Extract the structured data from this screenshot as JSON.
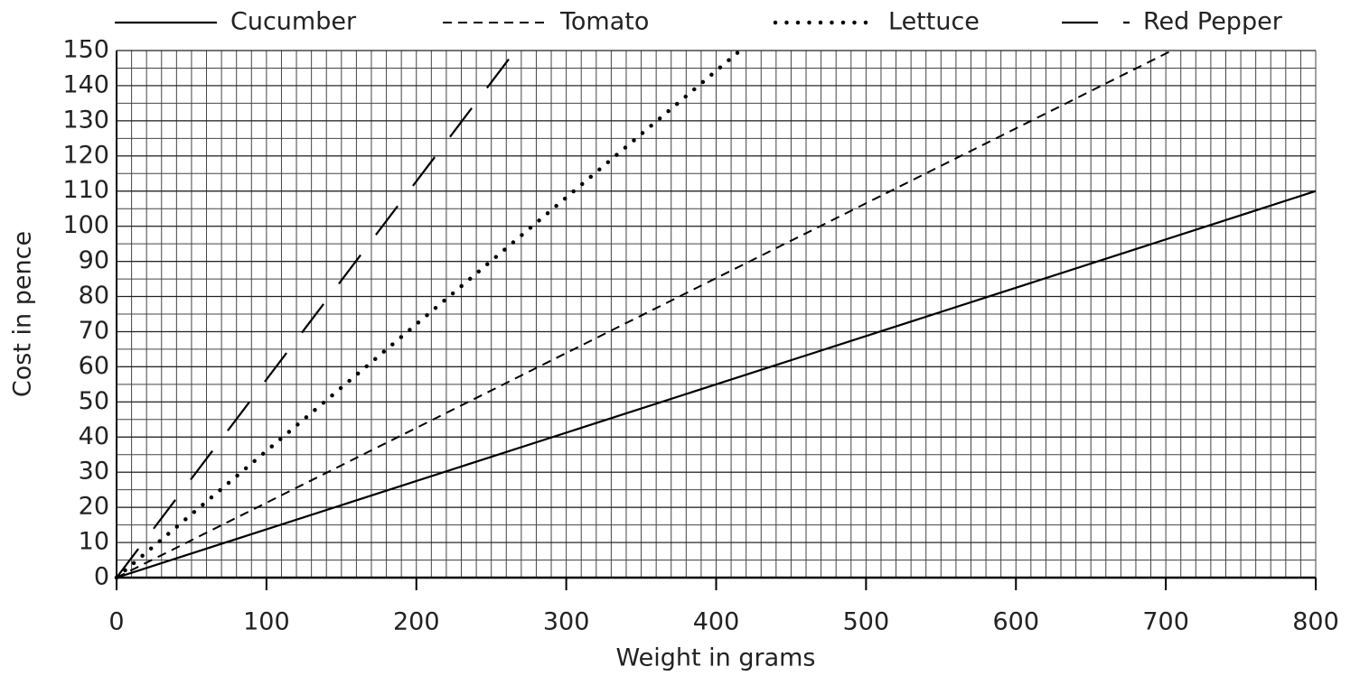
{
  "chart_data": {
    "type": "line",
    "xlabel": "Weight in grams",
    "ylabel": "Cost in pence",
    "xlim": [
      0,
      800
    ],
    "xticks": [
      0,
      100,
      200,
      300,
      400,
      500,
      600,
      700,
      800
    ],
    "ylim": [
      0,
      150
    ],
    "yticks": [
      0,
      10,
      20,
      30,
      40,
      50,
      60,
      70,
      80,
      90,
      100,
      110,
      120,
      130,
      140,
      150
    ],
    "grid": true,
    "minor_grid": {
      "x": 10,
      "y": 5
    },
    "legend": "top",
    "series": [
      {
        "name": "Cucumber",
        "color": "#000000",
        "dash": "solid",
        "x": [
          0,
          800
        ],
        "values": [
          0,
          110
        ]
      },
      {
        "name": "Tomato",
        "color": "#000000",
        "dash": "dashed",
        "x": [
          0,
          704
        ],
        "values": [
          0,
          150
        ]
      },
      {
        "name": "Lettuce",
        "color": "#000000",
        "dash": "dotted",
        "x": [
          0,
          416
        ],
        "values": [
          0,
          150
        ]
      },
      {
        "name": "Red Pepper",
        "color": "#000000",
        "dash": "longdash",
        "x": [
          0,
          266
        ],
        "values": [
          0,
          150
        ]
      }
    ]
  }
}
